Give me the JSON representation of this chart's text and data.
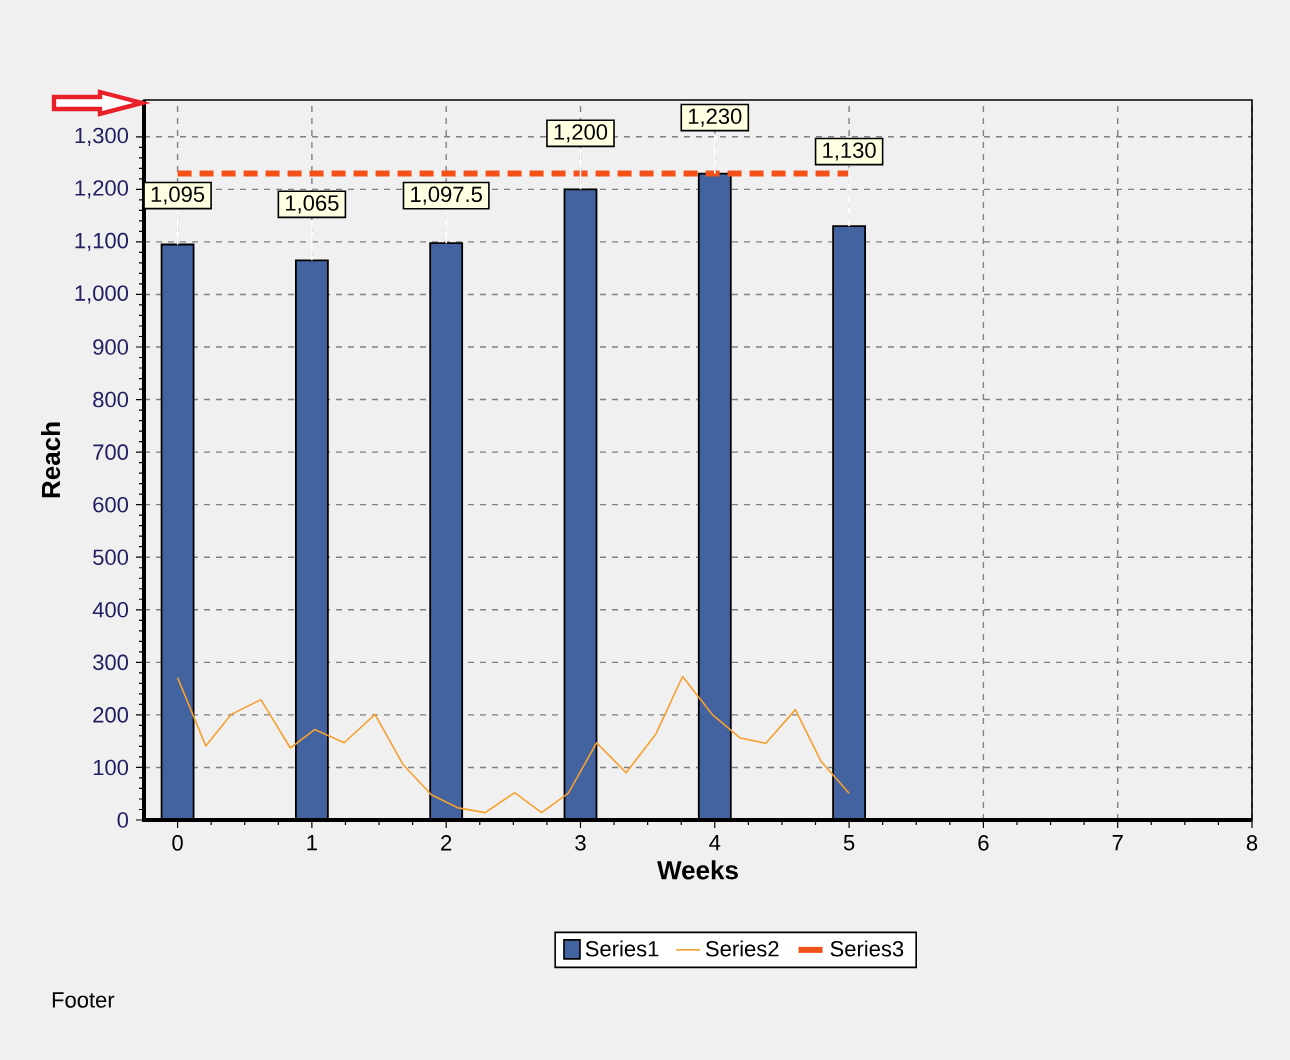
{
  "chart_data": {
    "type": "bar",
    "xlabel": "Weeks",
    "ylabel": "Reach",
    "annotations": [
      "Footer"
    ],
    "xlim": [
      -0.25,
      8
    ],
    "xticks": [
      0,
      1,
      2,
      3,
      4,
      5,
      6,
      7,
      8
    ],
    "ylim": [
      0,
      1370
    ],
    "yticks": [
      0,
      100,
      200,
      300,
      400,
      500,
      600,
      700,
      800,
      900,
      {
        "value": 1000,
        "label": "1,000"
      },
      {
        "value": 1100,
        "label": "1,100"
      },
      {
        "value": 1200,
        "label": "1,200"
      },
      {
        "value": 1300,
        "label": "1,300"
      }
    ],
    "grid": true,
    "legend": "bottom",
    "series": [
      {
        "name": "Series1",
        "color": "#4363a0",
        "x": [
          0,
          1,
          2,
          3,
          4,
          5
        ],
        "values": [
          1095,
          1065,
          1097.5,
          1200,
          1230,
          1130
        ],
        "value_labels": [
          "1,095",
          "1,065",
          "1,097.5",
          "1,200",
          "1,230",
          "1,130"
        ]
      },
      {
        "name": "Series2",
        "type": "line",
        "color": "#f5a030",
        "x": [
          0,
          0.21,
          0.4,
          0.62,
          0.84,
          1.02,
          1.24,
          1.47,
          1.68,
          1.89,
          2.09,
          2.29,
          2.51,
          2.71,
          2.91,
          3.12,
          3.34,
          3.56,
          3.76,
          3.98,
          4.19,
          4.38,
          4.6,
          4.79,
          5
        ],
        "values": [
          271,
          141,
          201,
          229,
          137,
          172,
          147,
          201,
          105,
          48,
          23,
          14,
          52,
          14,
          51,
          147,
          90,
          163,
          273,
          201,
          156,
          146,
          210,
          112,
          51
        ]
      },
      {
        "name": "Series3",
        "type": "line",
        "color": "#f2521a",
        "line_style": "dashed",
        "x": [
          0,
          5
        ],
        "values": [
          1230,
          1230
        ]
      }
    ]
  }
}
